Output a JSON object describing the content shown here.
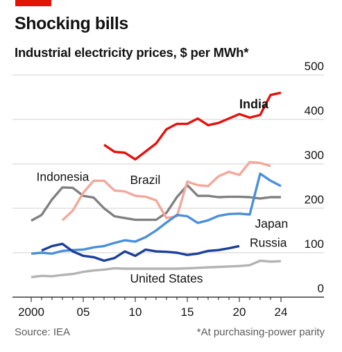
{
  "figure": {
    "accent_color": "#e3120b",
    "source": "Source: IEA",
    "footnote": "*At purchasing-power parity"
  },
  "chart_data": {
    "type": "line",
    "title": "Shocking bills",
    "subtitle": "Industrial electricity prices, $ per MWh*",
    "xlabel": "",
    "ylabel": "",
    "xlim": [
      2000,
      2024
    ],
    "ylim": [
      0,
      500
    ],
    "x_ticks": [
      2000,
      2005,
      2010,
      2015,
      2020,
      2024
    ],
    "x_tick_labels": [
      "2000",
      "05",
      "10",
      "15",
      "20",
      "24"
    ],
    "y_ticks": [
      0,
      100,
      200,
      300,
      400,
      500
    ],
    "y_tick_labels": [
      "0",
      "100",
      "200",
      "300",
      "400",
      "500"
    ],
    "grid": "horizontal",
    "y_axis_side": "right",
    "series": [
      {
        "name": "United States",
        "color": "#b3b3b3",
        "x": [
          2000,
          2001,
          2002,
          2003,
          2004,
          2005,
          2006,
          2007,
          2008,
          2009,
          2010,
          2011,
          2012,
          2013,
          2014,
          2015,
          2016,
          2017,
          2018,
          2019,
          2020,
          2021,
          2022,
          2023,
          2024
        ],
        "y": [
          45,
          48,
          47,
          50,
          52,
          57,
          60,
          62,
          65,
          64,
          64,
          64,
          64,
          64,
          64,
          65,
          66,
          67,
          68,
          69,
          70,
          72,
          82,
          80,
          81
        ]
      },
      {
        "name": "Indonesia",
        "color": "#808080",
        "x": [
          2000,
          2001,
          2002,
          2003,
          2004,
          2005,
          2006,
          2007,
          2008,
          2009,
          2010,
          2011,
          2012,
          2013,
          2014,
          2015,
          2016,
          2017,
          2018,
          2019,
          2020,
          2021,
          2022,
          2023,
          2024
        ],
        "y": [
          172,
          185,
          220,
          247,
          246,
          228,
          224,
          200,
          182,
          178,
          174,
          174,
          174,
          190,
          225,
          252,
          228,
          228,
          225,
          226,
          226,
          225,
          222,
          225,
          225
        ]
      },
      {
        "name": "Brazil",
        "color": "#f4a79b",
        "x": [
          2003,
          2004,
          2005,
          2006,
          2007,
          2008,
          2009,
          2010,
          2011,
          2012,
          2013,
          2014,
          2015,
          2016,
          2017,
          2018,
          2019,
          2020,
          2021,
          2022,
          2023
        ],
        "y": [
          173,
          195,
          235,
          262,
          262,
          240,
          238,
          228,
          226,
          218,
          178,
          182,
          260,
          252,
          250,
          272,
          282,
          275,
          304,
          302,
          295
        ]
      },
      {
        "name": "Japan",
        "color": "#4a8fd9",
        "x": [
          2000,
          2001,
          2002,
          2003,
          2004,
          2005,
          2006,
          2007,
          2008,
          2009,
          2010,
          2011,
          2012,
          2013,
          2014,
          2015,
          2016,
          2017,
          2018,
          2019,
          2020,
          2021,
          2022,
          2023,
          2024
        ],
        "y": [
          98,
          100,
          98,
          104,
          106,
          107,
          112,
          115,
          122,
          128,
          125,
          135,
          150,
          168,
          185,
          182,
          167,
          173,
          183,
          187,
          188,
          186,
          278,
          262,
          250
        ]
      },
      {
        "name": "Russia",
        "color": "#1b3f9c",
        "x": [
          2001,
          2002,
          2003,
          2004,
          2005,
          2006,
          2007,
          2008,
          2009,
          2010,
          2011,
          2012,
          2013,
          2014,
          2015,
          2016,
          2017,
          2018,
          2019,
          2020
        ],
        "y": [
          105,
          115,
          120,
          103,
          93,
          90,
          82,
          88,
          103,
          93,
          107,
          103,
          102,
          100,
          95,
          98,
          104,
          106,
          110,
          115
        ]
      },
      {
        "name": "India",
        "color": "#e3120b",
        "x": [
          2007,
          2008,
          2009,
          2010,
          2011,
          2012,
          2013,
          2014,
          2015,
          2016,
          2017,
          2018,
          2019,
          2020,
          2021,
          2022,
          2023,
          2024
        ],
        "y": [
          343,
          327,
          325,
          310,
          328,
          346,
          378,
          390,
          390,
          402,
          387,
          392,
          402,
          412,
          404,
          410,
          455,
          460
        ]
      }
    ],
    "annotations": [
      {
        "text": "India",
        "x": 2020,
        "y": 425
      },
      {
        "text": "Indonesia",
        "x": 2000.5,
        "y": 262
      },
      {
        "text": "Brazil",
        "x": 2009.5,
        "y": 255
      },
      {
        "text": "Japan",
        "x": 2021.5,
        "y": 156
      },
      {
        "text": "Russia",
        "x": 2021,
        "y": 113
      },
      {
        "text": "United States",
        "x": 2009.5,
        "y": 33
      }
    ]
  }
}
